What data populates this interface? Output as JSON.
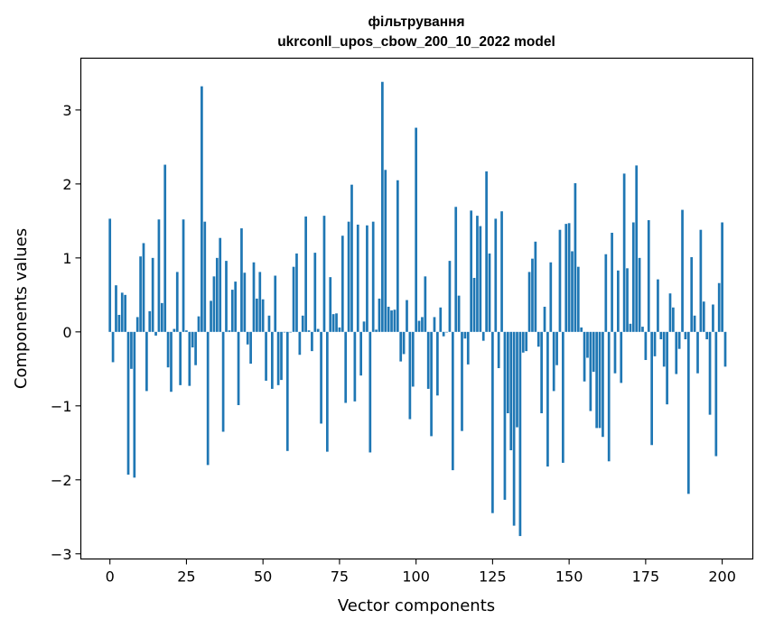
{
  "chart_data": {
    "type": "bar",
    "title_line1": "фільтрування",
    "title_line2": "ukrconll_upos_cbow_200_10_2022 model",
    "xlabel": "Vector components",
    "ylabel": "Components values",
    "xlim": [
      -9.5,
      210
    ],
    "ylim": [
      -3.07,
      3.7
    ],
    "xticks": [
      0,
      25,
      50,
      75,
      100,
      125,
      150,
      175,
      200
    ],
    "yticks": [
      -3,
      -2,
      -1,
      0,
      1,
      2,
      3
    ],
    "xtick_labels": [
      "0",
      "25",
      "50",
      "75",
      "100",
      "125",
      "150",
      "175",
      "200"
    ],
    "ytick_labels": [
      "−3",
      "−2",
      "−1",
      "0",
      "1",
      "2",
      "3"
    ],
    "bar_color": "#1f77b4",
    "grid": false,
    "values": [
      1.53,
      -0.41,
      0.63,
      0.23,
      0.53,
      0.5,
      -1.93,
      -0.5,
      -1.97,
      0.2,
      1.02,
      1.2,
      -0.8,
      0.28,
      1.0,
      -0.05,
      1.52,
      0.39,
      2.26,
      -0.48,
      -0.81,
      0.04,
      0.81,
      -0.72,
      1.52,
      0.02,
      -0.73,
      -0.21,
      -0.45,
      0.21,
      3.32,
      1.49,
      -1.8,
      0.42,
      0.75,
      1.0,
      1.27,
      -1.35,
      0.96,
      0.02,
      0.57,
      0.68,
      -0.99,
      1.4,
      0.8,
      -0.17,
      -0.43,
      0.94,
      0.45,
      0.81,
      0.44,
      -0.66,
      0.22,
      -0.77,
      0.76,
      -0.72,
      -0.65,
      0.0,
      -1.61,
      0.0,
      0.88,
      1.06,
      -0.31,
      0.22,
      1.56,
      0.02,
      -0.26,
      1.07,
      0.04,
      -1.24,
      1.57,
      -1.62,
      0.74,
      0.24,
      0.25,
      0.06,
      1.3,
      -0.96,
      1.49,
      1.99,
      -0.94,
      1.45,
      -0.59,
      0.14,
      1.44,
      -1.63,
      1.49,
      0.03,
      0.45,
      3.38,
      2.19,
      0.34,
      0.29,
      0.3,
      2.05,
      -0.4,
      -0.3,
      0.43,
      -1.18,
      -0.74,
      2.76,
      0.15,
      0.2,
      0.75,
      -0.77,
      -1.41,
      0.2,
      -0.86,
      0.33,
      -0.06,
      0.0,
      0.96,
      -1.87,
      1.69,
      0.49,
      -1.34,
      -0.09,
      -0.44,
      1.64,
      0.73,
      1.57,
      1.43,
      -0.12,
      2.17,
      1.06,
      -2.45,
      1.53,
      -0.49,
      1.63,
      -2.27,
      -1.1,
      -1.6,
      -2.62,
      -1.29,
      -2.76,
      -0.28,
      -0.26,
      0.81,
      0.99,
      1.22,
      -0.2,
      -1.1,
      0.34,
      -1.82,
      0.94,
      -0.8,
      -0.45,
      1.38,
      -1.77,
      1.46,
      1.47,
      1.09,
      2.01,
      0.88,
      0.06,
      -0.67,
      -0.35,
      -1.07,
      -0.54,
      -1.3,
      -1.3,
      -1.42,
      1.05,
      -1.75,
      1.34,
      -0.56,
      0.83,
      -0.69,
      2.14,
      0.86,
      0.11,
      1.48,
      2.25,
      1.0,
      0.07,
      -0.38,
      1.51,
      -1.53,
      -0.33,
      0.71,
      -0.1,
      -0.47,
      -0.98,
      0.52,
      0.33,
      -0.57,
      -0.23,
      1.65,
      -0.1,
      -2.19,
      1.01,
      0.22,
      -0.56,
      1.38,
      0.41,
      -0.1,
      -1.12,
      0.37,
      -1.68,
      0.66,
      1.48,
      -0.47
    ]
  }
}
